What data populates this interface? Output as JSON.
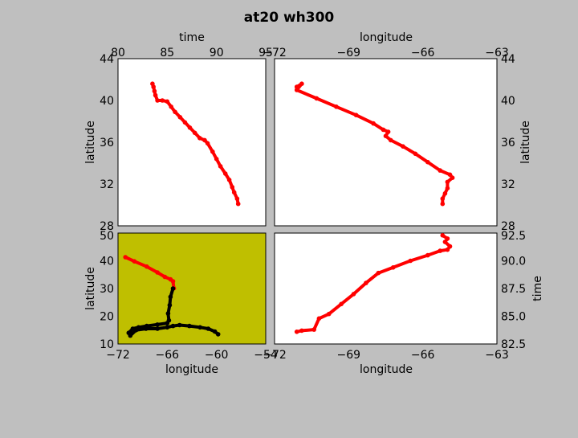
{
  "figure": {
    "title": "at20 wh300",
    "background": "#bfbfbf",
    "track_color": "#ff0000",
    "secondary_track_color": "#000000",
    "map_background": "#bfbf00"
  },
  "chart_data": [
    {
      "id": "time-latitude",
      "type": "line",
      "xlabel": "time",
      "ylabel": "latitude",
      "xlim": [
        80,
        95
      ],
      "ylim": [
        28,
        44
      ],
      "xticks": [
        "80",
        "85",
        "90",
        "95"
      ],
      "yticks": [
        "28",
        "32",
        "36",
        "40",
        "44"
      ],
      "series": [
        {
          "color": "#ff0000",
          "x": [
            83.5,
            83.6,
            83.7,
            83.8,
            84.0,
            84.5,
            85.0,
            85.4,
            85.8,
            86.3,
            86.8,
            87.3,
            87.8,
            88.3,
            88.8,
            89.1,
            89.6,
            90.0,
            90.4,
            90.9,
            91.3,
            91.6,
            91.8,
            92.1,
            92.2
          ],
          "y": [
            41.6,
            41.3,
            40.9,
            40.5,
            40.0,
            40.0,
            39.9,
            39.4,
            38.9,
            38.4,
            37.9,
            37.4,
            36.9,
            36.4,
            36.2,
            35.9,
            35.1,
            34.4,
            33.7,
            33.0,
            32.4,
            31.7,
            31.2,
            30.6,
            30.1
          ]
        }
      ]
    },
    {
      "id": "longitude-latitude",
      "type": "line",
      "xlabel": "longitude",
      "ylabel": "latitude",
      "xlim": [
        -72,
        -63
      ],
      "ylim": [
        28,
        44
      ],
      "xticks": [
        "−72",
        "−69",
        "−66",
        "−63"
      ],
      "yticks": [
        "28",
        "32",
        "36",
        "40",
        "44"
      ],
      "series": [
        {
          "color": "#ff0000",
          "x": [
            -71.1,
            -70.9,
            -71.1,
            -70.3,
            -69.5,
            -68.7,
            -68.0,
            -67.6,
            -67.4,
            -67.5,
            -67.3,
            -66.8,
            -66.3,
            -65.8,
            -65.3,
            -64.9,
            -64.8,
            -65.0,
            -65.0,
            -65.1,
            -65.2,
            -65.2
          ],
          "y": [
            41.3,
            41.6,
            41.0,
            40.2,
            39.4,
            38.6,
            37.8,
            37.2,
            37.0,
            36.6,
            36.2,
            35.6,
            34.9,
            34.1,
            33.3,
            32.9,
            32.6,
            32.2,
            31.6,
            31.1,
            30.6,
            30.1
          ]
        }
      ]
    },
    {
      "id": "map-longitude-latitude",
      "type": "line",
      "xlabel": "longitude",
      "ylabel": "latitude",
      "xlim": [
        -72,
        -54
      ],
      "ylim": [
        10,
        50
      ],
      "xticks": [
        "−72",
        "−66",
        "−60",
        "−54"
      ],
      "yticks": [
        "10",
        "20",
        "30",
        "40",
        "50"
      ],
      "series": [
        {
          "color": "#ff0000",
          "x": [
            -71.1,
            -70.0,
            -68.5,
            -67.2,
            -66.3,
            -65.6,
            -65.3,
            -65.2
          ],
          "y": [
            41.3,
            39.8,
            37.9,
            35.8,
            34.2,
            33.3,
            32.6,
            30.1
          ]
        },
        {
          "color": "#000000",
          "x": [
            -65.3,
            -65.6,
            -65.7,
            -65.9,
            -65.8,
            -66.0,
            -67.2,
            -68.5,
            -69.5,
            -70.2,
            -70.7,
            -70.5,
            -69.8,
            -68.6,
            -67.2,
            -66.0,
            -65.3,
            -64.5,
            -63.3,
            -62.0,
            -61.0,
            -60.2,
            -59.8
          ],
          "y": [
            30.0,
            27.0,
            24.0,
            21.0,
            18.5,
            17.5,
            17.0,
            16.5,
            16.0,
            15.5,
            14.0,
            13.0,
            15.0,
            15.5,
            15.5,
            16.0,
            16.5,
            16.8,
            16.5,
            16.0,
            15.5,
            14.5,
            13.5
          ]
        }
      ]
    },
    {
      "id": "longitude-time",
      "type": "line",
      "xlabel": "longitude",
      "ylabel": "time",
      "xlim": [
        -72,
        -63
      ],
      "ylim": [
        82.5,
        92.5
      ],
      "xticks": [
        "−72",
        "−69",
        "−66",
        "−63"
      ],
      "yticks": [
        "82.5",
        "85.0",
        "87.5",
        "90.0",
        "92.5"
      ],
      "series": [
        {
          "color": "#ff0000",
          "x": [
            -71.1,
            -70.9,
            -70.4,
            -70.2,
            -69.8,
            -69.3,
            -68.8,
            -68.3,
            -67.8,
            -67.2,
            -66.5,
            -65.8,
            -65.3,
            -65.0,
            -64.9,
            -65.1,
            -65.0,
            -65.2
          ],
          "y": [
            83.6,
            83.7,
            83.8,
            84.8,
            85.2,
            86.1,
            87.0,
            88.0,
            88.9,
            89.4,
            90.0,
            90.5,
            90.9,
            91.0,
            91.3,
            91.7,
            92.0,
            92.3
          ]
        }
      ]
    }
  ]
}
